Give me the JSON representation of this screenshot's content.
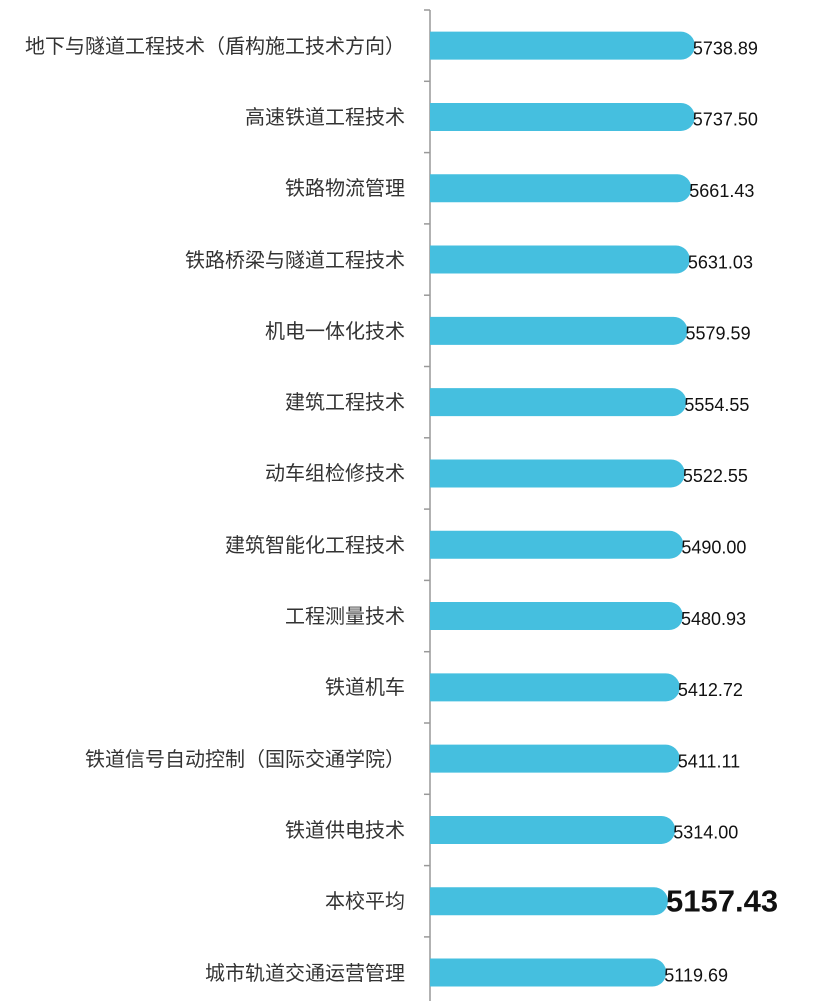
{
  "chart_data": {
    "type": "bar",
    "orientation": "horizontal",
    "categories": [
      "地下与隧道工程技术（盾构施工技术方向）",
      "高速铁道工程技术",
      "铁路物流管理",
      "铁路桥梁与隧道工程技术",
      "机电一体化技术",
      "建筑工程技术",
      "动车组检修技术",
      "建筑智能化工程技术",
      "工程测量技术",
      "铁道机车",
      "铁道信号自动控制（国际交通学院）",
      "铁道供电技术",
      "本校平均",
      "城市轨道交通运营管理"
    ],
    "values": [
      5738.89,
      5737.5,
      5661.43,
      5631.03,
      5579.59,
      5554.55,
      5522.55,
      5490.0,
      5480.93,
      5412.72,
      5411.11,
      5314.0,
      5157.43,
      5119.69
    ],
    "value_labels": [
      "5738.89",
      "5737.50",
      "5661.43",
      "5631.03",
      "5579.59",
      "5554.55",
      "5522.55",
      "5490.00",
      "5480.93",
      "5412.72",
      "5411.11",
      "5314.00",
      "5157.43",
      "5119.69"
    ],
    "color": "#45bfdf",
    "xlim": [
      0,
      6500
    ],
    "emphasis_index": 12
  }
}
